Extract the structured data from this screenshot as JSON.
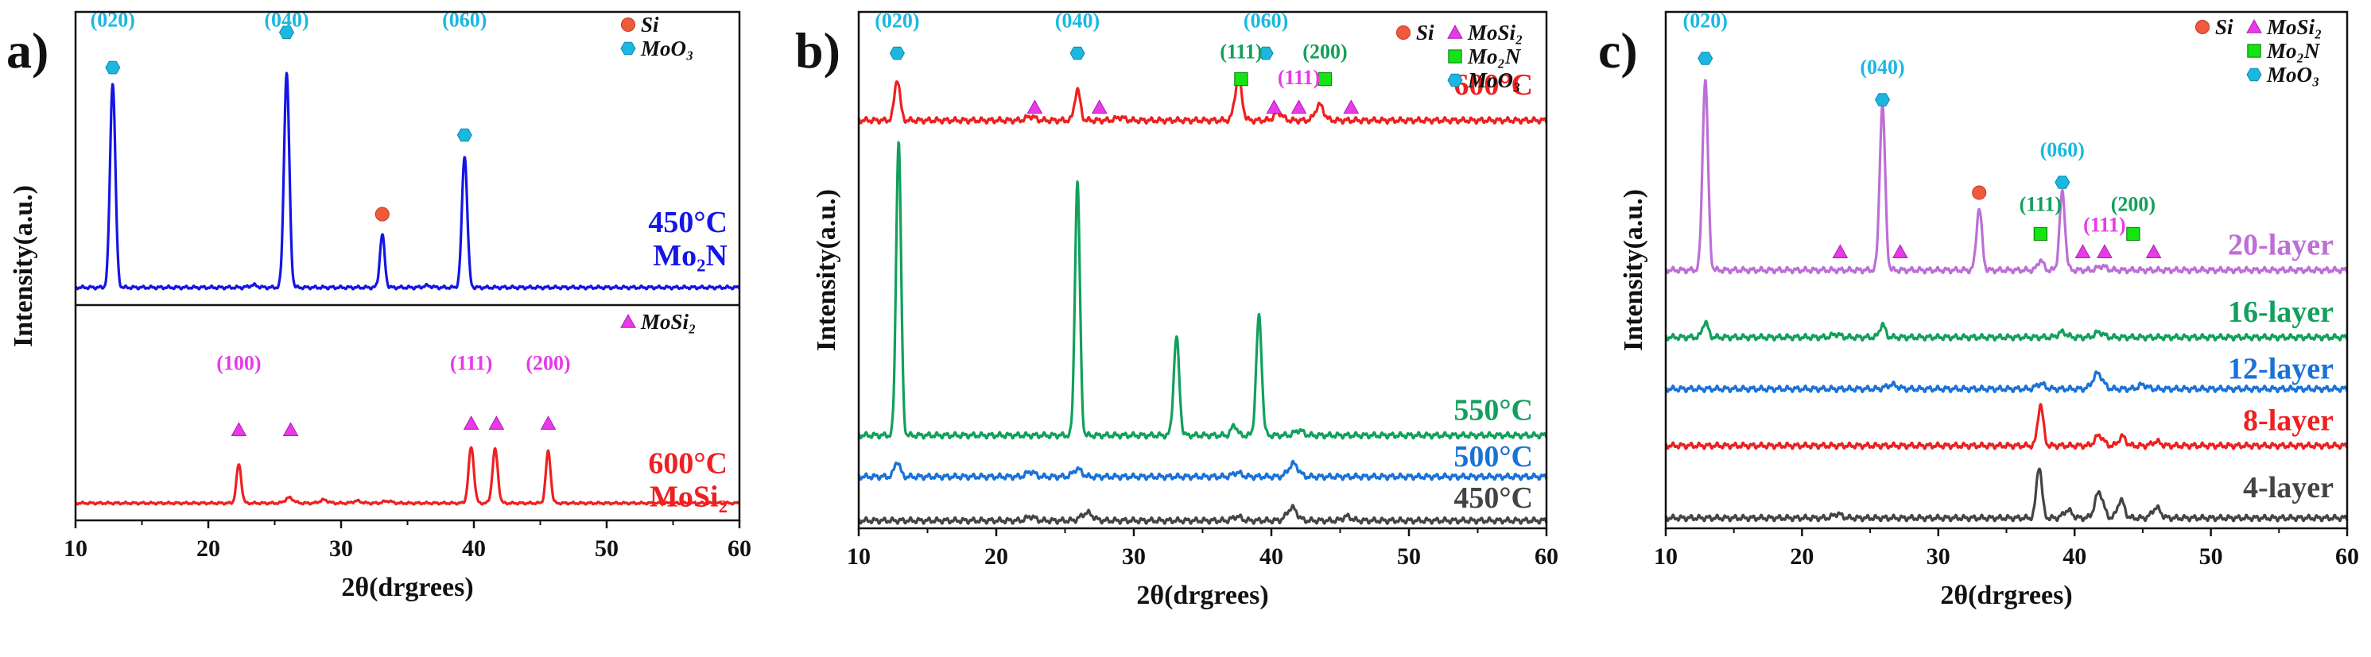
{
  "colors": {
    "blue": "#1515e6",
    "red": "#ee2020",
    "green": "#12a05c",
    "lightblue": "#1a72d6",
    "gray": "#444444",
    "violet": "#bd6fd6",
    "cyan": "#1ab8e0",
    "magenta": "#e83ae8",
    "si": "#ef5a3c",
    "mo2n": "#14e414",
    "axis": "#111111"
  },
  "chart_data": [
    {
      "type": "line",
      "panel": "a)",
      "xlabel": "2θ(drgrees)",
      "ylabel": "Intensity(a.u.)",
      "xlim": [
        10,
        60
      ],
      "xticks": [
        "10",
        "20",
        "30",
        "40",
        "50",
        "60"
      ],
      "subplots": [
        {
          "ylim": [
            0,
            100
          ],
          "series": [
            {
              "name": "450°C Mo2N",
              "color": "blue",
              "baseline": 6,
              "label_lines": [
                "450°C",
                "Mo₂N"
              ],
              "peaks": [
                [
                  12.8,
                  70,
                  0.2
                ],
                [
                  25.9,
                  73,
                  0.2
                ],
                [
                  33.1,
                  18,
                  0.18
                ],
                [
                  39.3,
                  45,
                  0.2
                ],
                [
                  23.4,
                  0.8,
                  0.3
                ],
                [
                  36.5,
                  0.6,
                  0.3
                ]
              ]
            }
          ],
          "markers": [
            {
              "type": "hex",
              "x": 12.8,
              "y": 81,
              "label": "(020)",
              "label_y": 95
            },
            {
              "type": "hex",
              "x": 25.9,
              "y": 93,
              "label": "(040)",
              "label_y": 95
            },
            {
              "type": "circle",
              "x": 33.1,
              "y": 31
            },
            {
              "type": "hex",
              "x": 39.3,
              "y": 58,
              "label": "(060)",
              "label_y": 95
            }
          ],
          "legend": [
            {
              "type": "circle",
              "text": "Si"
            },
            {
              "type": "hex",
              "text": "MoO₃"
            }
          ]
        },
        {
          "ylim": [
            0,
            100
          ],
          "series": [
            {
              "name": "600°C MoSi2",
              "color": "red",
              "baseline": 8,
              "label_lines": [
                "600°C",
                "MoSi₂"
              ],
              "peaks": [
                [
                  22.3,
                  18,
                  0.18
                ],
                [
                  26.1,
                  2.5,
                  0.3
                ],
                [
                  28.7,
                  1.5,
                  0.3
                ],
                [
                  39.8,
                  26,
                  0.2
                ],
                [
                  41.6,
                  25,
                  0.2
                ],
                [
                  45.6,
                  24,
                  0.18
                ],
                [
                  31.2,
                  1,
                  0.3
                ],
                [
                  33.5,
                  1,
                  0.3
                ]
              ]
            }
          ],
          "markers": [
            {
              "type": "tri",
              "x": 22.3,
              "y": 42,
              "label": "(100)",
              "label_y": 70
            },
            {
              "type": "tri",
              "x": 26.2,
              "y": 42
            },
            {
              "type": "tri",
              "x": 39.8,
              "y": 45,
              "label": "(111)",
              "label_y": 70
            },
            {
              "type": "tri",
              "x": 41.7,
              "y": 45
            },
            {
              "type": "tri",
              "x": 45.6,
              "y": 45,
              "label": "(200)",
              "label_y": 70
            }
          ],
          "legend": [
            {
              "type": "tri",
              "text": "MoSi₂"
            }
          ]
        }
      ]
    },
    {
      "type": "line",
      "panel": "b)",
      "xlabel": "2θ(drgrees)",
      "ylabel": "Intensity(a.u.)",
      "xlim": [
        10,
        60
      ],
      "ylim": [
        0,
        100
      ],
      "xticks": [
        "10",
        "20",
        "30",
        "40",
        "50",
        "60"
      ],
      "series": [
        {
          "name": "600°C",
          "color": "red",
          "baseline": 79,
          "label_lines": [
            "600°C"
          ],
          "label_y": 84,
          "peaks": [
            [
              12.8,
              8,
              0.2
            ],
            [
              25.9,
              6,
              0.2
            ],
            [
              37.6,
              8,
              0.25
            ],
            [
              43.5,
              3,
              0.3
            ],
            [
              40.5,
              1.5,
              0.3
            ],
            [
              22.5,
              0.8,
              0.3
            ],
            [
              29,
              0.6,
              0.3
            ]
          ]
        },
        {
          "name": "550°C",
          "color": "green",
          "baseline": 18,
          "label_lines": [
            "550°C"
          ],
          "label_y": 21,
          "peaks": [
            [
              12.9,
              57,
              0.18
            ],
            [
              25.9,
              49,
              0.18
            ],
            [
              33.1,
              19,
              0.2
            ],
            [
              39.1,
              23,
              0.2
            ],
            [
              37.3,
              2,
              0.2
            ],
            [
              42,
              1,
              0.3
            ]
          ]
        },
        {
          "name": "500°C",
          "color": "lightblue",
          "baseline": 10,
          "label_lines": [
            "500°C"
          ],
          "label_y": 12,
          "peaks": [
            [
              12.8,
              3,
              0.2
            ],
            [
              25.9,
              1.5,
              0.3
            ],
            [
              41.6,
              2.5,
              0.35
            ],
            [
              22.5,
              1,
              0.3
            ],
            [
              37.5,
              0.8,
              0.3
            ]
          ]
        },
        {
          "name": "450°C",
          "color": "gray",
          "baseline": 1.5,
          "label_lines": [
            "450°C"
          ],
          "label_y": 4,
          "peaks": [
            [
              26.6,
              1.5,
              0.4
            ],
            [
              41.5,
              2.5,
              0.35
            ],
            [
              22.5,
              0.8,
              0.3
            ],
            [
              37.5,
              0.8,
              0.3
            ],
            [
              45.5,
              0.8,
              0.3
            ]
          ]
        }
      ],
      "markers": [
        {
          "type": "hex",
          "x": 12.8,
          "y": 92,
          "label": "(020)",
          "label_y": 97
        },
        {
          "type": "hex",
          "x": 25.9,
          "y": 92,
          "label": "(040)",
          "label_y": 97
        },
        {
          "type": "hex",
          "x": 39.6,
          "y": 92,
          "label": "(060)",
          "label_y": 97
        },
        {
          "type": "square",
          "x": 37.8,
          "y": 87,
          "label": "(111)",
          "label_y": 91,
          "label_color": "green"
        },
        {
          "type": "square",
          "x": 43.9,
          "y": 87,
          "label": "(200)",
          "label_y": 91,
          "label_color": "green"
        },
        {
          "type": "tri",
          "x": 22.8,
          "y": 81.5
        },
        {
          "type": "tri",
          "x": 27.5,
          "y": 81.5
        },
        {
          "type": "tri",
          "x": 40.2,
          "y": 81.5
        },
        {
          "type": "tri",
          "x": 42.0,
          "y": 81.5,
          "label": "(111)",
          "label_y": 86
        },
        {
          "type": "tri",
          "x": 45.8,
          "y": 81.5
        }
      ],
      "legend": [
        {
          "type": "circle",
          "text": "Si"
        },
        {
          "type": "tri",
          "text": "MoSi₂"
        },
        {
          "type": "square",
          "text": "Mo₂N"
        },
        {
          "type": "hex",
          "text": "MoO₃"
        }
      ]
    },
    {
      "type": "line",
      "panel": "c)",
      "xlabel": "2θ(drgrees)",
      "ylabel": "Intensity(a.u.)",
      "xlim": [
        10,
        60
      ],
      "ylim": [
        0,
        100
      ],
      "xticks": [
        "10",
        "20",
        "30",
        "40",
        "50",
        "60"
      ],
      "series": [
        {
          "name": "20-layer",
          "color": "violet",
          "baseline": 50,
          "label_lines": [
            "20-layer"
          ],
          "label_y": 53,
          "peaks": [
            [
              12.9,
              37,
              0.2
            ],
            [
              25.9,
              32,
              0.2
            ],
            [
              33.0,
              12,
              0.2
            ],
            [
              39.1,
              15,
              0.2
            ],
            [
              37.5,
              2,
              0.2
            ],
            [
              42,
              0.8,
              0.3
            ]
          ]
        },
        {
          "name": "16-layer",
          "color": "green",
          "baseline": 37,
          "label_lines": [
            "16-layer"
          ],
          "label_y": 40,
          "peaks": [
            [
              12.9,
              3,
              0.2
            ],
            [
              25.9,
              2.5,
              0.2
            ],
            [
              39.1,
              1,
              0.3
            ],
            [
              41.8,
              1,
              0.3
            ],
            [
              22.5,
              0.6,
              0.3
            ]
          ]
        },
        {
          "name": "12-layer",
          "color": "lightblue",
          "baseline": 27,
          "label_lines": [
            "12-layer"
          ],
          "label_y": 29,
          "peaks": [
            [
              41.7,
              3,
              0.35
            ],
            [
              37.5,
              1,
              0.3
            ],
            [
              26.6,
              0.8,
              0.4
            ],
            [
              45,
              0.8,
              0.3
            ]
          ]
        },
        {
          "name": "8-layer",
          "color": "red",
          "baseline": 16,
          "label_lines": [
            "8-layer"
          ],
          "label_y": 19,
          "peaks": [
            [
              37.5,
              8,
              0.2
            ],
            [
              41.8,
              2,
              0.3
            ],
            [
              43.5,
              1.8,
              0.25
            ],
            [
              46,
              0.8,
              0.3
            ]
          ]
        },
        {
          "name": "4-layer",
          "color": "gray",
          "baseline": 2,
          "label_lines": [
            "4-layer"
          ],
          "label_y": 6,
          "peaks": [
            [
              37.4,
              10,
              0.2
            ],
            [
              41.8,
              5,
              0.3
            ],
            [
              43.4,
              3.5,
              0.25
            ],
            [
              46.0,
              2,
              0.3
            ],
            [
              22.6,
              0.8,
              0.3
            ],
            [
              39.5,
              1.5,
              0.3
            ]
          ]
        }
      ],
      "markers": [
        {
          "type": "hex",
          "x": 12.9,
          "y": 91,
          "label": "(020)",
          "label_y": 97
        },
        {
          "type": "hex",
          "x": 25.9,
          "y": 83,
          "label": "(040)",
          "label_y": 88
        },
        {
          "type": "hex",
          "x": 39.1,
          "y": 67,
          "label": "(060)",
          "label_y": 72
        },
        {
          "type": "circle",
          "x": 33.0,
          "y": 65
        },
        {
          "type": "square",
          "x": 37.5,
          "y": 57,
          "label": "(111)",
          "label_y": 61.5,
          "label_color": "green"
        },
        {
          "type": "square",
          "x": 44.3,
          "y": 57,
          "label": "(200)",
          "label_y": 61.5,
          "label_color": "green"
        },
        {
          "type": "tri",
          "x": 22.8,
          "y": 53.5
        },
        {
          "type": "tri",
          "x": 27.2,
          "y": 53.5
        },
        {
          "type": "tri",
          "x": 40.6,
          "y": 53.5
        },
        {
          "type": "tri",
          "x": 42.2,
          "y": 53.5,
          "label": "(111)",
          "label_y": 57.5
        },
        {
          "type": "tri",
          "x": 45.8,
          "y": 53.5
        }
      ],
      "legend": [
        {
          "type": "circle",
          "text": "Si"
        },
        {
          "type": "tri",
          "text": "MoSi₂"
        },
        {
          "type": "square",
          "text": "Mo₂N"
        },
        {
          "type": "hex",
          "text": "MoO₃"
        }
      ]
    }
  ]
}
